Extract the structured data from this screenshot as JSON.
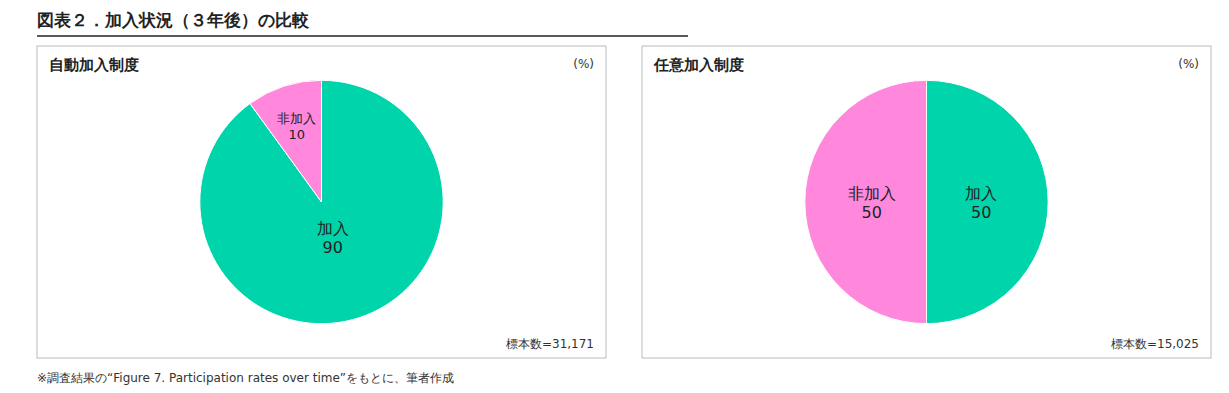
{
  "title": "図表２．加入状況（３年後）の比較",
  "annotations": [
    "※調査結果の“Figure 7.  Participation rates over time”をもとに、筆者作成"
  ],
  "chart_data": [
    {
      "type": "pie",
      "title": "自動加入制度",
      "categories": [
        "加入",
        "非加入"
      ],
      "values": [
        90,
        10
      ],
      "colors": [
        "#00D4AA",
        "#FF88DD"
      ],
      "data_labels": true,
      "annotations": [
        "(%)",
        "標本数=31,171"
      ]
    },
    {
      "type": "pie",
      "title": "任意加入制度",
      "categories": [
        "非加入",
        "加入"
      ],
      "values": [
        50,
        50
      ],
      "colors": [
        "#FF88DD",
        "#00D4AA"
      ],
      "data_labels": true,
      "annotations": [
        "(%)",
        "標本数=15,025"
      ]
    }
  ]
}
